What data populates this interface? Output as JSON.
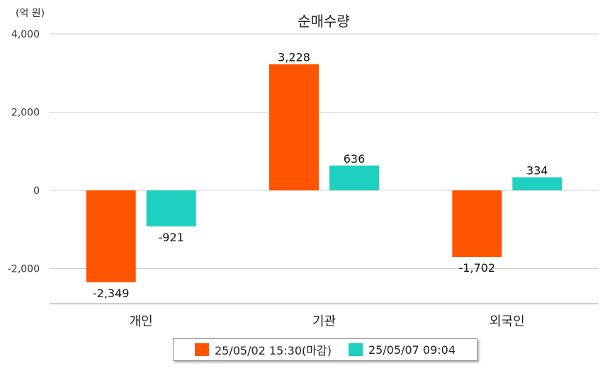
{
  "chart_data": {
    "type": "bar",
    "title": "순매수량",
    "unit_label": "(억 원)",
    "categories": [
      "개인",
      "기관",
      "외국인"
    ],
    "yticks": [
      4000,
      2000,
      0,
      -2000
    ],
    "ytick_labels": [
      "4,000",
      "2,000",
      "0",
      "-2,000"
    ],
    "ylim": [
      -2900,
      4000
    ],
    "grid": true,
    "legend_position": "bottom",
    "series": [
      {
        "name": "25/05/02 15:30(마감)",
        "color": "#ff5500",
        "values": [
          -2349,
          3228,
          -1702
        ],
        "labels": [
          "-2,349",
          "3,228",
          "-1,702"
        ]
      },
      {
        "name": "25/05/07 09:04",
        "color": "#1fcfbf",
        "values": [
          -921,
          636,
          334
        ],
        "labels": [
          "-921",
          "636",
          "334"
        ]
      }
    ]
  }
}
